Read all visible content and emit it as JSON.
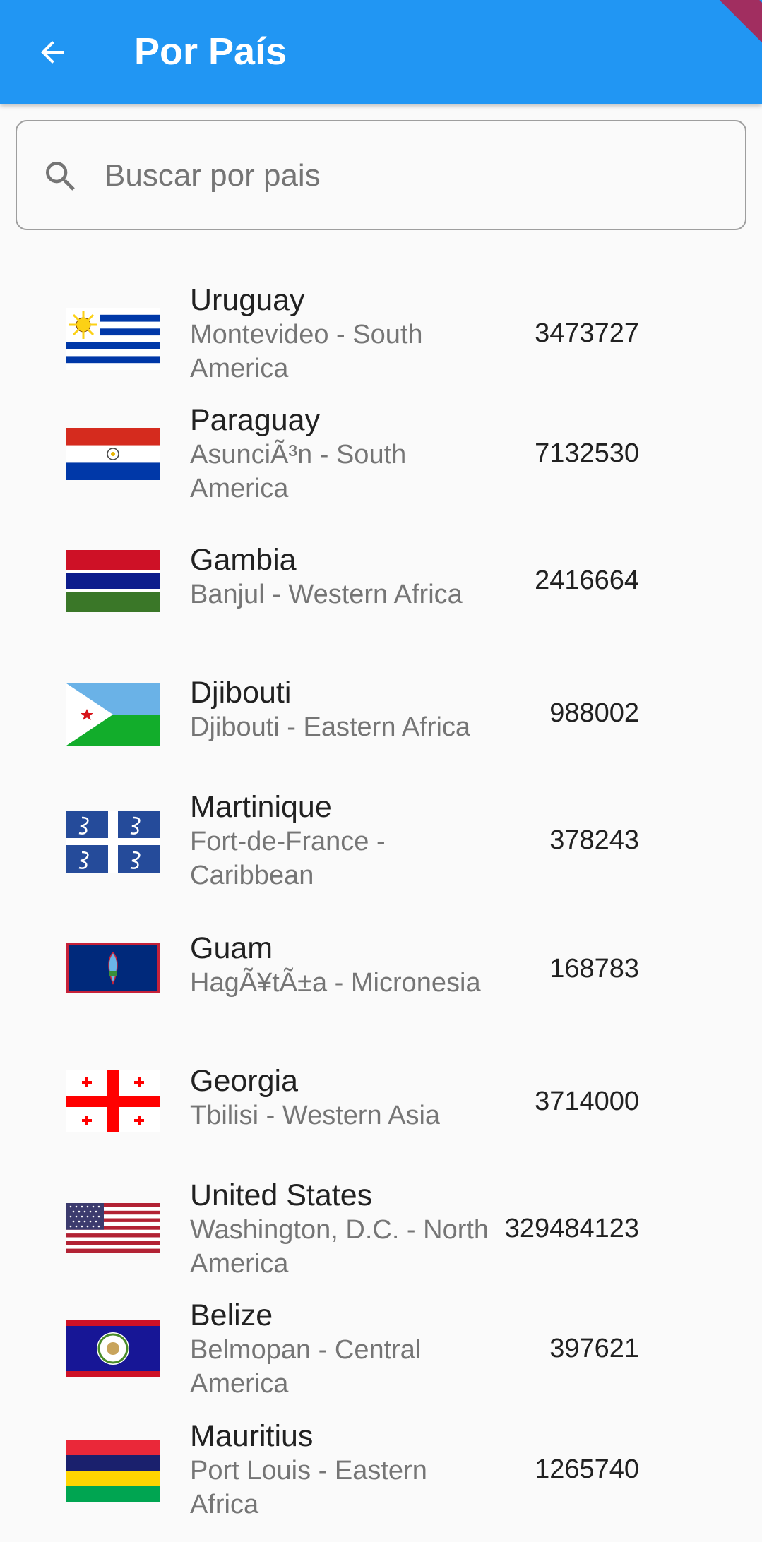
{
  "appbar": {
    "title": "Por País",
    "back_icon": "arrow-left-icon",
    "color": "#2196f3"
  },
  "search": {
    "placeholder": "Buscar por pais",
    "value": "",
    "icon": "search-icon"
  },
  "countries": [
    {
      "name": "Uruguay",
      "subtitle": "Montevideo - South America",
      "population": "3473727",
      "flag": "uruguay-flag-icon"
    },
    {
      "name": "Paraguay",
      "subtitle": "AsunciÃ³n - South America",
      "population": "7132530",
      "flag": "paraguay-flag-icon"
    },
    {
      "name": "Gambia",
      "subtitle": "Banjul - Western Africa",
      "population": "2416664",
      "flag": "gambia-flag-icon"
    },
    {
      "name": "Djibouti",
      "subtitle": "Djibouti - Eastern Africa",
      "population": "988002",
      "flag": "djibouti-flag-icon"
    },
    {
      "name": "Martinique",
      "subtitle": "Fort-de-France - Caribbean",
      "population": "378243",
      "flag": "martinique-flag-icon"
    },
    {
      "name": "Guam",
      "subtitle": "HagÃ¥tÃ±a - Micronesia",
      "population": "168783",
      "flag": "guam-flag-icon"
    },
    {
      "name": "Georgia",
      "subtitle": "Tbilisi - Western Asia",
      "population": "3714000",
      "flag": "georgia-flag-icon"
    },
    {
      "name": "United States",
      "subtitle": "Washington, D.C. - North America",
      "population": "329484123",
      "flag": "united-states-flag-icon"
    },
    {
      "name": "Belize",
      "subtitle": "Belmopan - Central America",
      "population": "397621",
      "flag": "belize-flag-icon"
    },
    {
      "name": "Mauritius",
      "subtitle": "Port Louis - Eastern Africa",
      "population": "1265740",
      "flag": "mauritius-flag-icon"
    }
  ]
}
